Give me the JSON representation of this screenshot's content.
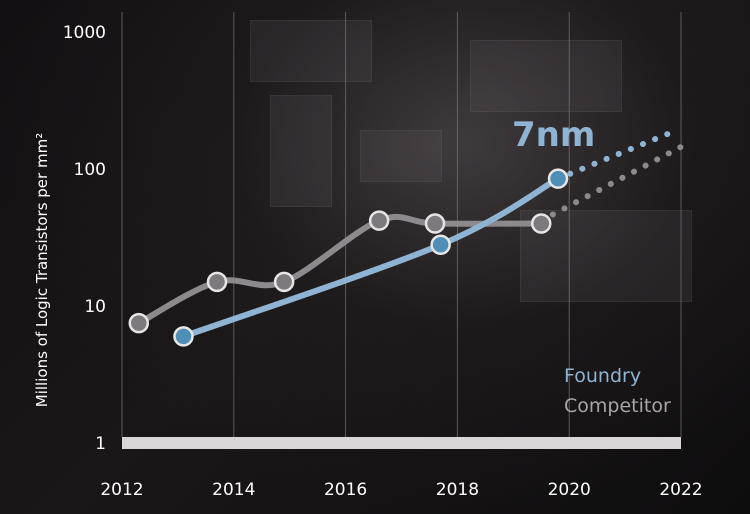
{
  "chart_data": {
    "type": "line",
    "ylabel": "Millions of Logic Transistors per mm²",
    "xlabel": "",
    "title": "",
    "x_ticks": [
      "2012",
      "2014",
      "2016",
      "2018",
      "2020",
      "2022"
    ],
    "y_ticks": [
      "1",
      "10",
      "100",
      "1000"
    ],
    "xlim": [
      2012,
      2022
    ],
    "ylim": [
      1,
      1000
    ],
    "y_scale": "log",
    "grid": "vertical",
    "legend_position": "bottom-right",
    "annotation": "7nm",
    "series": [
      {
        "name": "Foundry",
        "color": "#8fb4d3",
        "marker_color": "#4f8fb7",
        "x": [
          2013.1,
          2017.7,
          2019.8
        ],
        "values": [
          6,
          28,
          85
        ],
        "projection": {
          "x": [
            2019.8,
            2021.9
          ],
          "values": [
            85,
            190
          ]
        }
      },
      {
        "name": "Competitor",
        "color": "#8d898c",
        "marker_color": "#7d797c",
        "x": [
          2012.3,
          2013.7,
          2014.9,
          2016.6,
          2017.6,
          2019.5
        ],
        "values": [
          7.5,
          15,
          15,
          42,
          40,
          40
        ],
        "projection": {
          "x": [
            2019.5,
            2022.0
          ],
          "values": [
            42,
            145
          ]
        }
      }
    ]
  }
}
